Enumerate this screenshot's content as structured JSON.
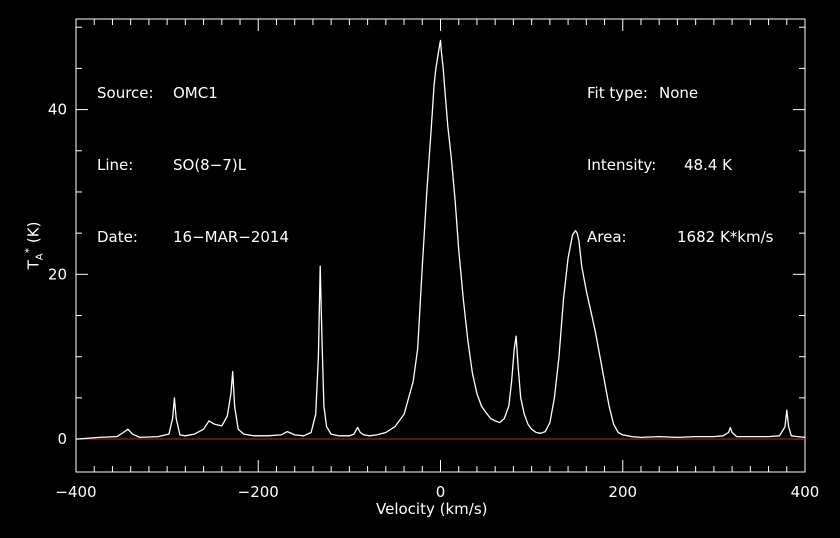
{
  "header_left": {
    "source_label": "Source:",
    "source_value": "OMC1",
    "line_label": "Line:",
    "line_value": "SO(8−7)L",
    "date_label": "Date:",
    "date_value": "16−MAR−2014"
  },
  "header_right": {
    "fit_label": "Fit type:",
    "fit_value": "None",
    "intensity_label": "Intensity:",
    "intensity_value": "48.4 K",
    "area_label": "Area:",
    "area_value": "1682 K*km/s"
  },
  "colors": {
    "background": "#000000",
    "foreground": "#ffffff",
    "baseline": "#cc2020"
  },
  "chart_data": {
    "type": "line",
    "title": "",
    "xlabel": "Velocity (km/s)",
    "ylabel_main": "T",
    "ylabel_sub": "A",
    "ylabel_sup": "*",
    "ylabel_unit": "(K)",
    "xlim": [
      -400,
      400
    ],
    "ylim": [
      -4,
      51
    ],
    "x_ticks": [
      -400,
      -200,
      0,
      200,
      400
    ],
    "x_tick_labels": [
      "−400",
      "−200",
      "0",
      "200",
      "400"
    ],
    "y_ticks": [
      0,
      20,
      40
    ],
    "y_tick_labels": [
      "0",
      "20",
      "40"
    ],
    "baseline_y": 0,
    "series": [
      {
        "x": [
          -400,
          -375,
          -355,
          -348,
          -343,
          -338,
          -330,
          -310,
          -298,
          -294,
          -292,
          -290,
          -286,
          -280,
          -270,
          -260,
          -254,
          -248,
          -240,
          -234,
          -230,
          -228,
          -226,
          -222,
          -216,
          -205,
          -190,
          -175,
          -168,
          -160,
          -150,
          -142,
          -137,
          -134,
          -132,
          -130,
          -128,
          -125,
          -120,
          -112,
          -100,
          -95,
          -91,
          -88,
          -84,
          -78,
          -70,
          -60,
          -50,
          -40,
          -30,
          -25,
          -20,
          -15,
          -10,
          -7,
          -5,
          -3,
          -1,
          0,
          1,
          3,
          5,
          8,
          12,
          16,
          20,
          25,
          30,
          35,
          40,
          45,
          50,
          55,
          60,
          65,
          70,
          75,
          78,
          81,
          83,
          85,
          88,
          92,
          96,
          100,
          105,
          110,
          115,
          120,
          125,
          130,
          135,
          140,
          145,
          148,
          150,
          152,
          155,
          160,
          165,
          170,
          175,
          180,
          185,
          190,
          195,
          200,
          210,
          220,
          240,
          260,
          280,
          300,
          310,
          316,
          318,
          320,
          325,
          340,
          360,
          372,
          378,
          380,
          382,
          385,
          392,
          400
        ],
        "y": [
          0,
          0.2,
          0.3,
          0.8,
          1.2,
          0.6,
          0.2,
          0.3,
          0.6,
          2.5,
          5,
          2.5,
          0.5,
          0.4,
          0.6,
          1.2,
          2.2,
          1.8,
          1.6,
          2.8,
          5.5,
          8.2,
          4,
          1.2,
          0.6,
          0.4,
          0.4,
          0.5,
          0.9,
          0.5,
          0.4,
          0.8,
          3,
          10,
          21,
          12,
          4,
          1.5,
          0.6,
          0.4,
          0.4,
          0.6,
          1.4,
          0.8,
          0.5,
          0.4,
          0.5,
          0.8,
          1.5,
          3,
          7,
          11,
          21,
          30,
          38,
          43,
          45,
          46.5,
          47.8,
          48.4,
          47,
          45,
          42,
          38,
          34,
          29,
          23,
          17,
          12,
          8,
          5.5,
          4,
          3.2,
          2.5,
          2.2,
          2,
          2.5,
          4,
          7,
          11,
          12.5,
          9,
          5,
          3,
          1.8,
          1.2,
          0.8,
          0.7,
          0.9,
          2,
          5,
          10,
          17,
          22,
          24.8,
          25.3,
          25,
          24,
          21,
          18,
          15.5,
          13,
          10,
          7,
          4,
          1.8,
          0.8,
          0.5,
          0.3,
          0.2,
          0.3,
          0.2,
          0.3,
          0.3,
          0.4,
          0.8,
          1.4,
          0.8,
          0.3,
          0.3,
          0.3,
          0.4,
          1.5,
          3.5,
          1.5,
          0.4,
          0.3,
          0.2
        ]
      }
    ]
  }
}
